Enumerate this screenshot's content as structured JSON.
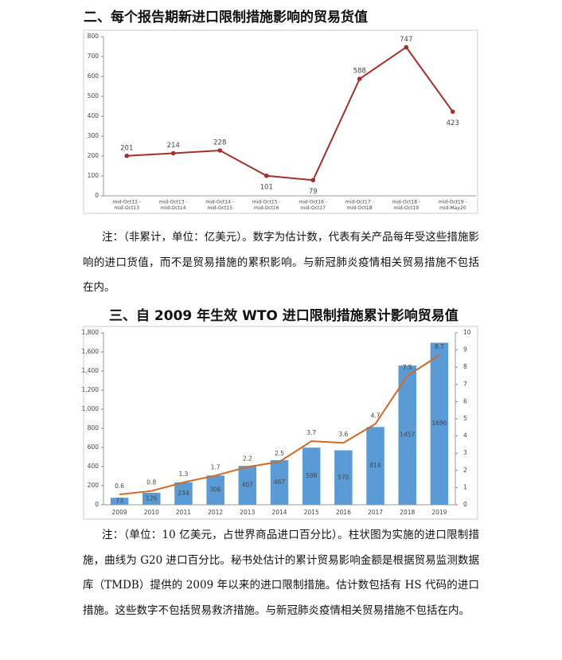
{
  "chart_data": [
    {
      "type": "line",
      "title": "二、每个报告期新进口限制措施影响的贸易货值",
      "categories": [
        [
          "mid-Oct12 -",
          "mid-Oct13"
        ],
        [
          "mid-Oct13 -",
          "mid-Oct14"
        ],
        [
          "mid-Oct14 -",
          "mid-Oct15"
        ],
        [
          "mid-Oct15 -",
          "mid-Oct16"
        ],
        [
          "mid-Oct16 -",
          "mid-Oct17"
        ],
        [
          "mid-Oct17 -",
          "mid-Oct18"
        ],
        [
          "mid-Oct18 -",
          "mid-Oct19"
        ],
        [
          "mid-Oct19 -",
          "mid-May20"
        ]
      ],
      "values": [
        201,
        214,
        228,
        101,
        79,
        588,
        747,
        423
      ],
      "color": "#a3302e",
      "ylim": [
        0,
        800
      ],
      "yticks": [
        0,
        100,
        200,
        300,
        400,
        500,
        600,
        700,
        800
      ]
    },
    {
      "type": "combo",
      "title": "三、自 2009 年生效 WTO 进口限制措施累计影响贸易值",
      "categories": [
        "2009",
        "2010",
        "2011",
        "2012",
        "2013",
        "2014",
        "2015",
        "2016",
        "2017",
        "2018",
        "2019"
      ],
      "series": [
        {
          "type": "bar",
          "color": "#5b9bd5",
          "values": [
            73,
            126,
            234,
            306,
            407,
            467,
            598,
            570,
            814,
            1457,
            1696
          ]
        },
        {
          "type": "line",
          "axis": "y2",
          "color": "#d06a25",
          "values": [
            0.6,
            0.8,
            1.3,
            1.7,
            2.2,
            2.5,
            3.7,
            3.6,
            4.7,
            7.5,
            8.7
          ]
        }
      ],
      "ylim": [
        0,
        1800
      ],
      "yticks": [
        0,
        200,
        400,
        600,
        800,
        {
          "value": 1000,
          "label": "1,000"
        },
        {
          "value": 1200,
          "label": "1,200"
        },
        {
          "value": 1400,
          "label": "1,400"
        },
        {
          "value": 1600,
          "label": "1,600"
        },
        {
          "value": 1800,
          "label": "1,800"
        }
      ],
      "y2lim": [
        0,
        10
      ],
      "y2ticks": [
        0,
        1,
        2,
        3,
        4,
        5,
        6,
        7,
        8,
        9,
        10
      ]
    }
  ],
  "notes": [
    "注：（非累计，单位：亿美元）。数字为估计数，代表有关产品每年受这些措施影响的进口货值，而不是贸易措施的累积影响。与新冠肺炎疫情相关贸易措施不包括在内。",
    "注：（单位：10 亿美元，占世界商品进口百分比）。柱状图为实施的进口限制措施，曲线为 G20 进口百分比。秘书处估计的累计贸易影响金额是根据贸易监测数据库（TMDB）提供的 2009 年以来的进口限制措施。估计数包括有 HS 代码的进口措施。这些数字不包括贸易救济措施。与新冠肺炎疫情相关贸易措施不包括在内。"
  ]
}
